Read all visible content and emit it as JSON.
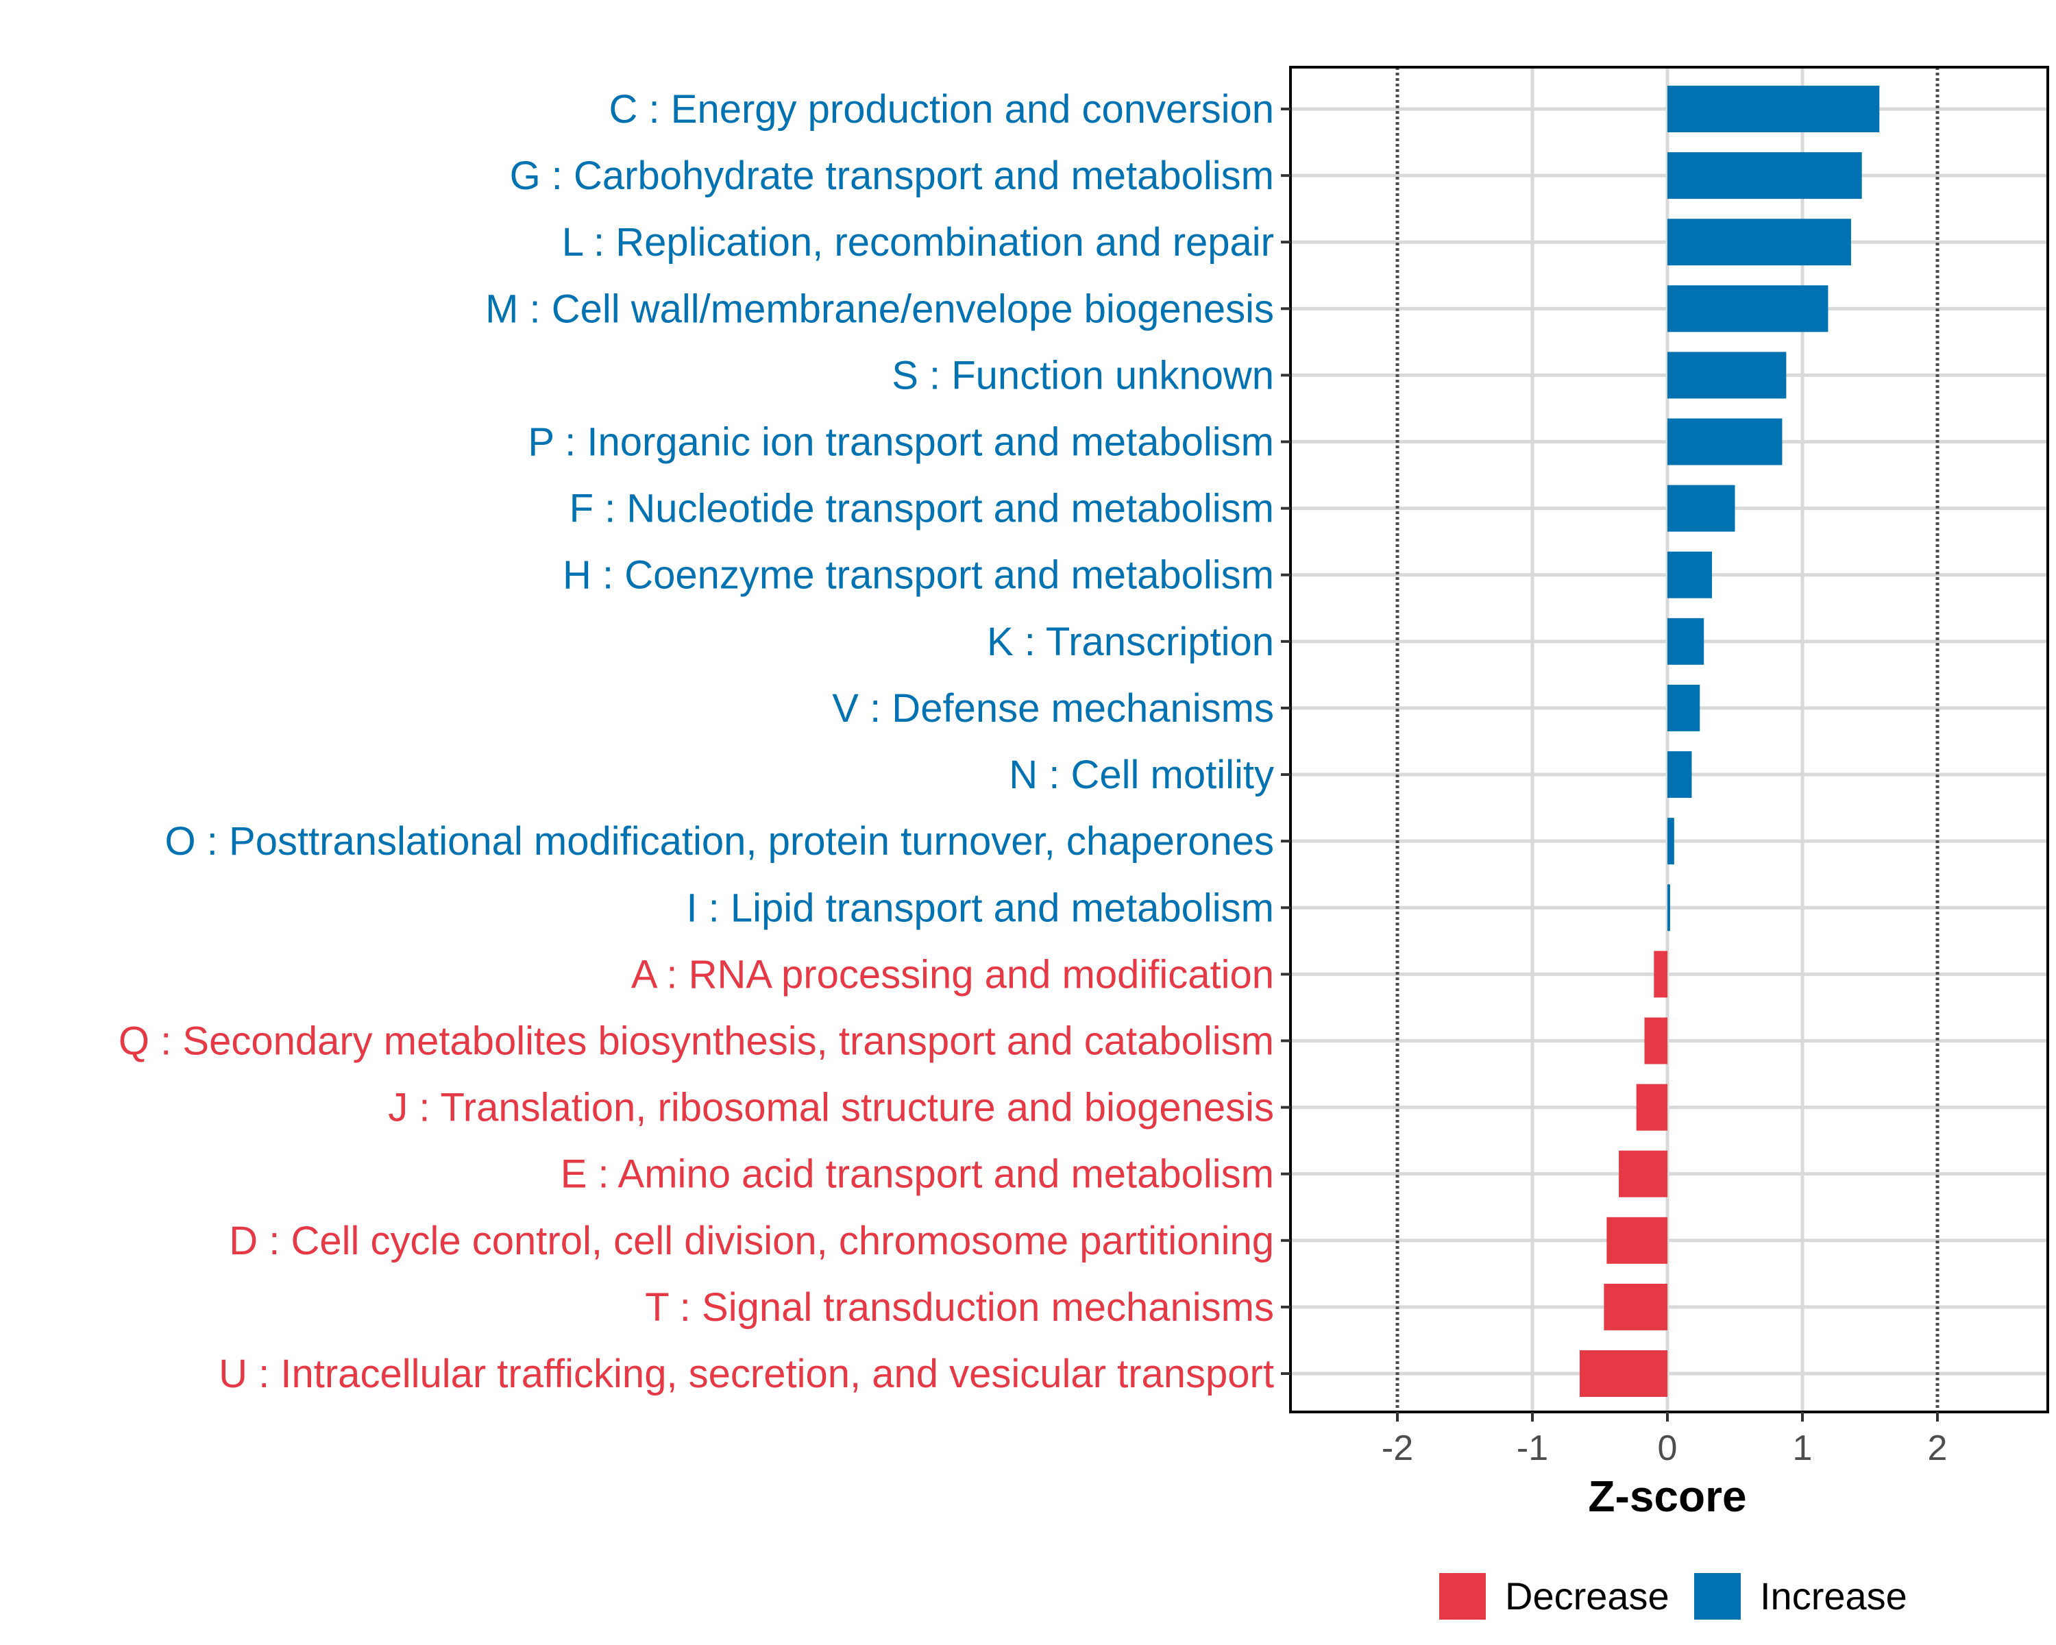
{
  "chart_data": {
    "type": "bar",
    "orientation": "horizontal",
    "xlabel": "Z-score",
    "ylabel": "",
    "xlim": [
      -2.8,
      2.8
    ],
    "x_ticks": [
      -2,
      -1,
      0,
      1,
      2
    ],
    "x_tick_labels": [
      "-2",
      "-1",
      "0",
      "1",
      "2"
    ],
    "reference_lines": [
      -2,
      2
    ],
    "grid": true,
    "legend_position": "bottom",
    "colors": {
      "Increase": "#0072b2",
      "Decrease": "#e63946",
      "grid": "#d9d9d9",
      "axis": "#000000",
      "reference_line": "#4d4d4d"
    },
    "legend": [
      {
        "name": "Decrease",
        "color": "#e63946"
      },
      {
        "name": "Increase",
        "color": "#0072b2"
      }
    ],
    "categories": [
      "C : Energy production and conversion",
      "G : Carbohydrate transport and metabolism",
      "L : Replication, recombination and repair",
      "M : Cell wall/membrane/envelope biogenesis",
      "S : Function unknown",
      "P : Inorganic ion transport and metabolism",
      "F : Nucleotide transport and metabolism",
      "H : Coenzyme transport and metabolism",
      "K : Transcription",
      "V : Defense mechanisms",
      "N : Cell motility",
      "O : Posttranslational modification, protein turnover, chaperones",
      "I : Lipid transport and metabolism",
      "A : RNA processing and modification",
      "Q : Secondary metabolites biosynthesis, transport and catabolism",
      "J : Translation, ribosomal structure and biogenesis",
      "E : Amino acid transport and metabolism",
      "D : Cell cycle control, cell division, chromosome partitioning",
      "T : Signal transduction mechanisms",
      "U : Intracellular trafficking, secretion, and vesicular transport"
    ],
    "values": [
      1.57,
      1.44,
      1.36,
      1.19,
      0.88,
      0.85,
      0.5,
      0.33,
      0.27,
      0.24,
      0.18,
      0.05,
      0.02,
      -0.1,
      -0.17,
      -0.23,
      -0.36,
      -0.45,
      -0.47,
      -0.65
    ],
    "groups": [
      "Increase",
      "Increase",
      "Increase",
      "Increase",
      "Increase",
      "Increase",
      "Increase",
      "Increase",
      "Increase",
      "Increase",
      "Increase",
      "Increase",
      "Increase",
      "Decrease",
      "Decrease",
      "Decrease",
      "Decrease",
      "Decrease",
      "Decrease",
      "Decrease"
    ]
  }
}
